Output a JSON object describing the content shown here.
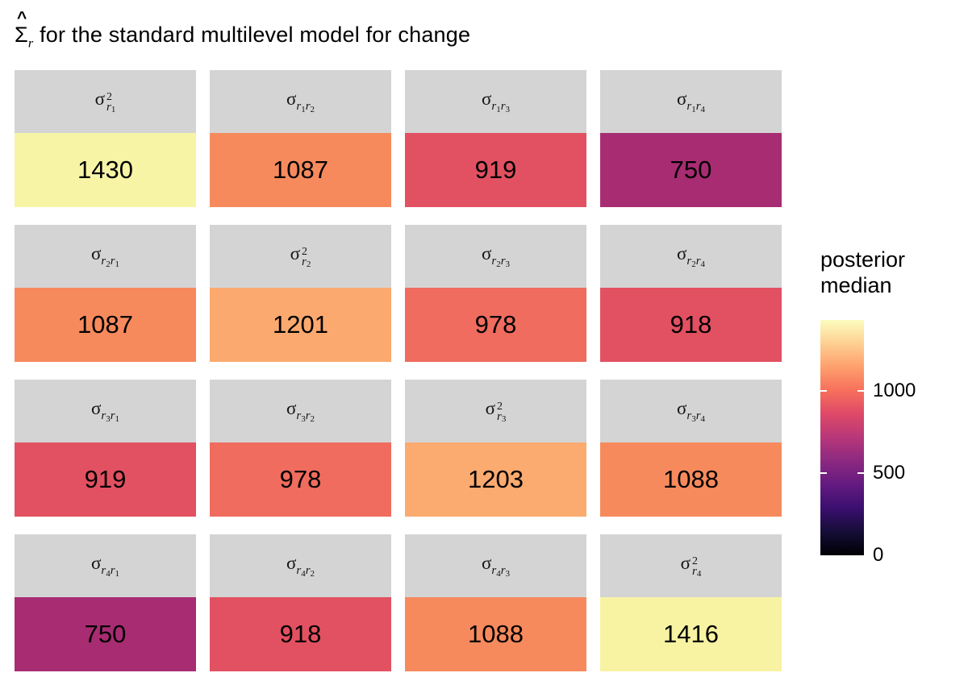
{
  "title": {
    "hat": "^",
    "sigma": "Σ",
    "subscript": "r",
    "rest": " for the standard multilevel model for change"
  },
  "symbols": {
    "sigma": "σ",
    "r": "r",
    "squared": "2"
  },
  "grid": {
    "cells": [
      {
        "type": "variance",
        "i": "1",
        "value": "1430",
        "color": "#f7f5a5"
      },
      {
        "type": "covariance",
        "i": "1",
        "j": "2",
        "value": "1087",
        "color": "#f78a5d"
      },
      {
        "type": "covariance",
        "i": "1",
        "j": "3",
        "value": "919",
        "color": "#e25161"
      },
      {
        "type": "covariance",
        "i": "1",
        "j": "4",
        "value": "750",
        "color": "#a82c72"
      },
      {
        "type": "covariance",
        "i": "2",
        "j": "1",
        "value": "1087",
        "color": "#f78a5d"
      },
      {
        "type": "variance",
        "i": "2",
        "value": "1201",
        "color": "#fba96f"
      },
      {
        "type": "covariance",
        "i": "2",
        "j": "3",
        "value": "978",
        "color": "#ef6c5e"
      },
      {
        "type": "covariance",
        "i": "2",
        "j": "4",
        "value": "918",
        "color": "#e25161"
      },
      {
        "type": "covariance",
        "i": "3",
        "j": "1",
        "value": "919",
        "color": "#e25161"
      },
      {
        "type": "covariance",
        "i": "3",
        "j": "2",
        "value": "978",
        "color": "#ef6c5e"
      },
      {
        "type": "variance",
        "i": "3",
        "value": "1203",
        "color": "#fbaa70"
      },
      {
        "type": "covariance",
        "i": "3",
        "j": "4",
        "value": "1088",
        "color": "#f78a5d"
      },
      {
        "type": "covariance",
        "i": "4",
        "j": "1",
        "value": "750",
        "color": "#a82c72"
      },
      {
        "type": "covariance",
        "i": "4",
        "j": "2",
        "value": "918",
        "color": "#e25161"
      },
      {
        "type": "covariance",
        "i": "4",
        "j": "3",
        "value": "1088",
        "color": "#f78a5d"
      },
      {
        "type": "variance",
        "i": "4",
        "value": "1416",
        "color": "#f8f3a2"
      }
    ],
    "strip_background": "#d4d4d4"
  },
  "legend": {
    "title_line1": "posterior",
    "title_line2": "median",
    "ticks": [
      {
        "label": "1000",
        "pos": 0.699
      },
      {
        "label": "500",
        "pos": 0.35
      },
      {
        "label": "0",
        "pos": 0.0
      }
    ],
    "gradient_stops": [
      "#000004",
      "#150e37",
      "#3b0f70",
      "#641a80",
      "#8c2981",
      "#b73779",
      "#de4968",
      "#f7705c",
      "#fe9f6d",
      "#fecf92",
      "#fcfdbf"
    ]
  },
  "chart_data": {
    "type": "heatmap",
    "title": "Σ̂_r for the standard multilevel model for change",
    "legend_title": "posterior median",
    "colormap": "magma",
    "scale": [
      0,
      1430
    ],
    "legend_ticks": [
      0,
      500,
      1000
    ],
    "facet_labels": [
      [
        "σ²_r1",
        "σ_r1r2",
        "σ_r1r3",
        "σ_r1r4"
      ],
      [
        "σ_r2r1",
        "σ²_r2",
        "σ_r2r3",
        "σ_r2r4"
      ],
      [
        "σ_r3r1",
        "σ_r3r2",
        "σ²_r3",
        "σ_r3r4"
      ],
      [
        "σ_r4r1",
        "σ_r4r2",
        "σ_r4r3",
        "σ²_r4"
      ]
    ],
    "values": [
      [
        1430,
        1087,
        919,
        750
      ],
      [
        1087,
        1201,
        978,
        918
      ],
      [
        919,
        978,
        1203,
        1088
      ],
      [
        750,
        918,
        1088,
        1416
      ]
    ]
  }
}
